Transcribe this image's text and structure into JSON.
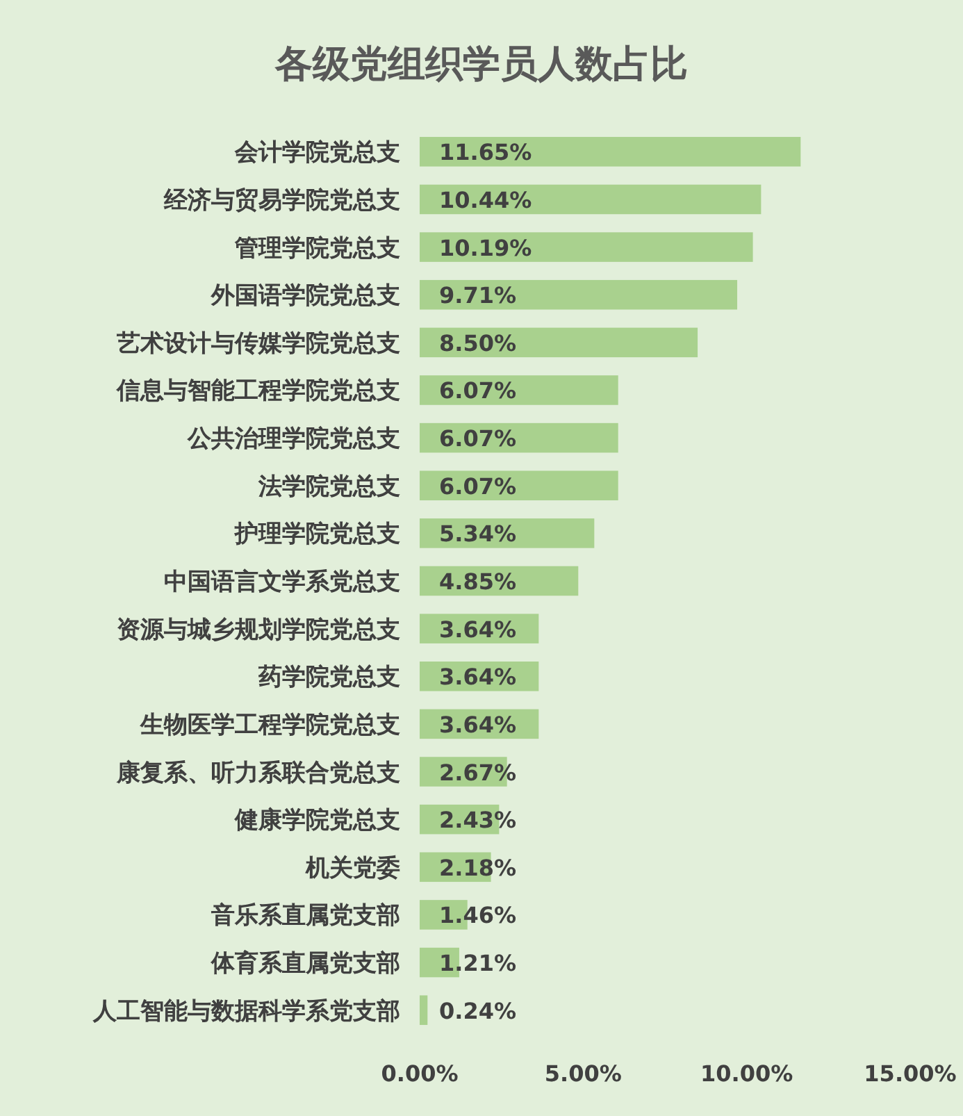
{
  "chart_data": {
    "type": "bar",
    "orientation": "horizontal",
    "title": "各级党组织学员人数占比",
    "categories": [
      "会计学院党总支",
      "经济与贸易学院党总支",
      "管理学院党总支",
      "外国语学院党总支",
      "艺术设计与传媒学院党总支",
      "信息与智能工程学院党总支",
      "公共治理学院党总支",
      "法学院党总支",
      "护理学院党总支",
      "中国语言文学系党总支",
      "资源与城乡规划学院党总支",
      "药学院党总支",
      "生物医学工程学院党总支",
      "康复系、听力系联合党总支",
      "健康学院党总支",
      "机关党委",
      "音乐系直属党支部",
      "体育系直属党支部",
      "人工智能与数据科学系党支部"
    ],
    "values": [
      11.65,
      10.44,
      10.19,
      9.71,
      8.5,
      6.07,
      6.07,
      6.07,
      5.34,
      4.85,
      3.64,
      3.64,
      3.64,
      2.67,
      2.43,
      2.18,
      1.46,
      1.21,
      0.24
    ],
    "value_labels": [
      "11.65%",
      "10.44%",
      "10.19%",
      "9.71%",
      "8.50%",
      "6.07%",
      "6.07%",
      "6.07%",
      "5.34%",
      "4.85%",
      "3.64%",
      "3.64%",
      "3.64%",
      "2.67%",
      "2.43%",
      "2.18%",
      "1.46%",
      "1.21%",
      "0.24%"
    ],
    "color": "#a9d18e",
    "xlim": [
      0,
      15
    ],
    "xticks": [
      {
        "value": 0,
        "label": "0.00%"
      },
      {
        "value": 5,
        "label": "5.00%"
      },
      {
        "value": 10,
        "label": "10.00%"
      },
      {
        "value": 15,
        "label": "15.00%"
      }
    ]
  }
}
